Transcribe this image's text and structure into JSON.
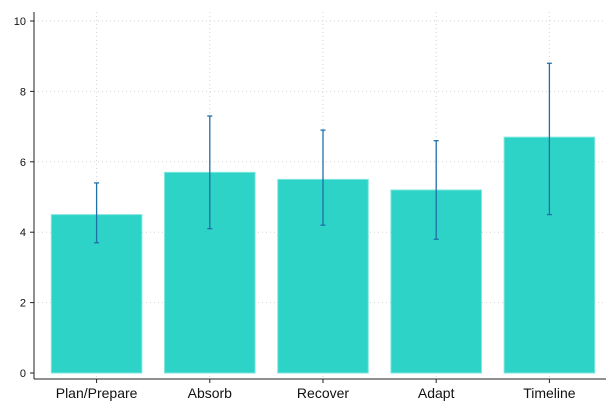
{
  "chart_data": {
    "type": "bar",
    "categories": [
      "Plan/Prepare",
      "Absorb",
      "Recover",
      "Adapt",
      "Timeline"
    ],
    "values": [
      4.5,
      5.7,
      5.5,
      5.2,
      6.7
    ],
    "error_low": [
      3.7,
      4.1,
      4.2,
      3.8,
      4.5
    ],
    "error_high": [
      5.4,
      7.3,
      6.9,
      6.6,
      8.8
    ],
    "yticks": [
      0,
      2,
      4,
      6,
      8,
      10
    ],
    "ylim": [
      0,
      10.3
    ],
    "grid": true,
    "colors": {
      "bar": "#2ed3c7",
      "bar_edge": "#7fe6dc",
      "error": "#1f6fa8"
    }
  }
}
